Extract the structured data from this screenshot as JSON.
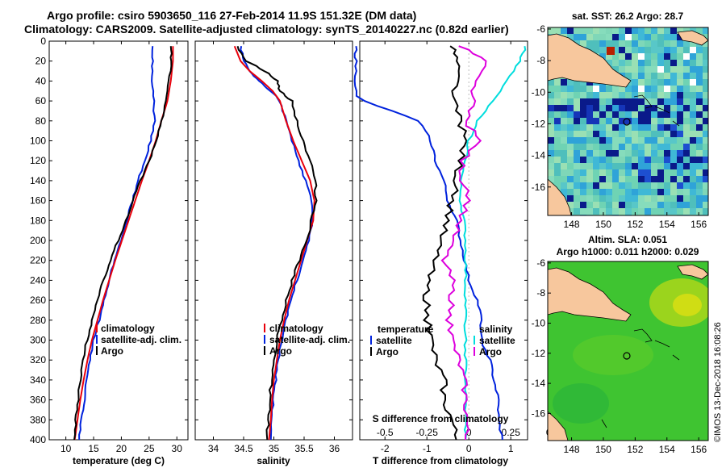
{
  "header": {
    "title_line1": "Argo profile: csiro 5903650_116 27-Feb-2014 11.9S 151.32E (DM data)",
    "title_line2": "Climatology: CARS2009. Satellite-adjusted climatology: synTS_20140227.nc (0.82d earlier)"
  },
  "depth_ticks": [
    0,
    20,
    40,
    60,
    80,
    100,
    120,
    140,
    160,
    180,
    200,
    220,
    240,
    260,
    280,
    300,
    320,
    340,
    360,
    380,
    400
  ],
  "colors": {
    "climatology": "#e8000b",
    "satellite": "#0022dd",
    "argo": "#000000",
    "sat_s": "#00dddd",
    "argo_s": "#dd00dd"
  },
  "chart_data": [
    {
      "type": "line",
      "xlabel": "temperature (deg C)",
      "xlim": [
        7,
        32
      ],
      "xticks": [
        10,
        15,
        20,
        25,
        30
      ],
      "ylim": [
        0,
        400
      ],
      "legend": [
        "climatology",
        "satellite-adj. clim.",
        "Argo"
      ],
      "series": [
        {
          "name": "climatology",
          "depth": [
            5,
            20,
            40,
            60,
            80,
            100,
            120,
            140,
            160,
            180,
            200,
            220,
            240,
            260,
            280,
            300,
            320,
            340,
            360,
            380,
            400
          ],
          "values": [
            29.3,
            29.3,
            28.9,
            28.3,
            27.2,
            26.2,
            25.0,
            23.7,
            22.5,
            21.3,
            20.1,
            18.9,
            17.8,
            16.7,
            15.7,
            14.7,
            13.9,
            13.2,
            12.6,
            12.1,
            11.6
          ]
        },
        {
          "name": "satellite-adj. clim.",
          "depth": [
            5,
            20,
            40,
            60,
            80,
            100,
            120,
            140,
            160,
            180,
            200,
            220,
            240,
            260,
            280,
            300,
            320,
            340,
            360,
            380,
            400
          ],
          "values": [
            25.5,
            25.6,
            25.5,
            25.8,
            26.0,
            25.3,
            24.2,
            23.0,
            22.0,
            21.0,
            19.9,
            18.8,
            17.8,
            16.9,
            16.0,
            15.0,
            14.4,
            13.8,
            13.3,
            12.8,
            12.4
          ]
        },
        {
          "name": "Argo",
          "depth": [
            5,
            20,
            40,
            60,
            80,
            100,
            120,
            140,
            160,
            180,
            200,
            220,
            240,
            260,
            280,
            300,
            320,
            340,
            360,
            380,
            400
          ],
          "values": [
            28.9,
            29.0,
            28.6,
            28.1,
            27.3,
            26.3,
            25.0,
            23.5,
            22.1,
            20.8,
            19.4,
            18.1,
            16.8,
            15.7,
            14.7,
            13.8,
            13.1,
            12.6,
            12.2,
            11.8,
            11.5
          ]
        }
      ]
    },
    {
      "type": "line",
      "xlabel": "salinity",
      "xlim": [
        33.7,
        36.3
      ],
      "xticks": [
        34,
        34.5,
        35,
        35.5,
        36
      ],
      "ylim": [
        0,
        400
      ],
      "legend": [
        "climatology",
        "satellite-adj. clim.",
        "Argo"
      ],
      "series": [
        {
          "name": "climatology",
          "depth": [
            5,
            20,
            30,
            40,
            50,
            60,
            80,
            100,
            120,
            140,
            160,
            180,
            200,
            220,
            240,
            260,
            280,
            300,
            320,
            340,
            360,
            380,
            400
          ],
          "values": [
            34.35,
            34.45,
            34.6,
            34.8,
            34.98,
            35.1,
            35.2,
            35.32,
            35.46,
            35.6,
            35.67,
            35.65,
            35.55,
            35.45,
            35.35,
            35.25,
            35.17,
            35.1,
            35.05,
            35.0,
            34.97,
            34.95,
            34.92
          ]
        },
        {
          "name": "satellite-adj. clim.",
          "depth": [
            5,
            20,
            30,
            40,
            50,
            60,
            80,
            100,
            120,
            140,
            160,
            180,
            200,
            220,
            240,
            260,
            280,
            300,
            320,
            340,
            360,
            380,
            400
          ],
          "values": [
            34.45,
            34.5,
            34.6,
            34.75,
            34.95,
            35.1,
            35.2,
            35.3,
            35.4,
            35.52,
            35.62,
            35.64,
            35.58,
            35.48,
            35.38,
            35.28,
            35.2,
            35.13,
            35.07,
            35.03,
            34.99,
            34.97,
            34.95
          ]
        },
        {
          "name": "Argo",
          "depth": [
            5,
            20,
            30,
            40,
            50,
            60,
            80,
            100,
            120,
            140,
            160,
            180,
            200,
            220,
            240,
            260,
            280,
            300,
            320,
            340,
            360,
            380,
            400
          ],
          "values": [
            34.4,
            34.55,
            34.85,
            35.05,
            35.1,
            35.3,
            35.38,
            35.48,
            35.6,
            35.68,
            35.7,
            35.62,
            35.55,
            35.42,
            35.3,
            35.2,
            35.12,
            35.05,
            35.0,
            34.96,
            34.93,
            34.91,
            34.89
          ]
        }
      ]
    },
    {
      "type": "line",
      "xlabel": "T difference from climatology",
      "xlabel_top": "S difference from climatology",
      "xlim": [
        -2.6,
        1.4
      ],
      "xticks": [
        -2,
        -1,
        0,
        1
      ],
      "xticks_top": [
        -0.5,
        -0.25,
        0,
        0.25,
        0.5
      ],
      "xlim_top": [
        -0.65,
        0.35
      ],
      "ylim": [
        0,
        400
      ],
      "legend_left_title": "temperature",
      "legend_right_title": "salinity",
      "legend": [
        "satellite",
        "Argo"
      ],
      "series": [
        {
          "name": "T satellite",
          "axis": "T",
          "depth": [
            5,
            20,
            40,
            60,
            80,
            100,
            120,
            140,
            160,
            180,
            200,
            220,
            240,
            260,
            280,
            300,
            320,
            340,
            360,
            380,
            400
          ],
          "values": [
            -3.8,
            -3.7,
            -3.4,
            -2.5,
            -1.2,
            -0.9,
            -0.8,
            -0.6,
            -0.5,
            -0.3,
            -0.2,
            -0.1,
            0.0,
            0.2,
            0.3,
            0.3,
            0.5,
            0.6,
            0.7,
            0.7,
            0.8
          ]
        },
        {
          "name": "T Argo",
          "axis": "T",
          "depth": [
            5,
            20,
            40,
            60,
            80,
            100,
            120,
            140,
            160,
            180,
            200,
            220,
            240,
            260,
            280,
            300,
            320,
            340,
            360,
            380,
            400
          ],
          "values": [
            -0.4,
            -0.3,
            -0.3,
            -0.4,
            -0.2,
            -0.1,
            -0.2,
            -0.3,
            -0.4,
            -0.5,
            -0.7,
            -0.8,
            -1.0,
            -1.0,
            -1.0,
            -0.9,
            -0.8,
            -0.6,
            -0.6,
            -0.4,
            -0.3
          ]
        },
        {
          "name": "S satellite",
          "axis": "S",
          "depth": [
            5,
            20,
            40,
            60,
            80,
            100,
            120,
            140,
            160,
            180,
            200,
            220,
            240,
            260,
            280,
            300,
            320,
            340,
            360,
            380,
            400
          ],
          "values": [
            0.35,
            0.3,
            0.23,
            0.14,
            0.05,
            0.0,
            -0.02,
            -0.05,
            -0.05,
            -0.03,
            -0.02,
            -0.02,
            -0.02,
            -0.02,
            -0.02,
            -0.02,
            -0.02,
            -0.02,
            -0.02,
            -0.02,
            -0.02
          ]
        },
        {
          "name": "S Argo",
          "axis": "S",
          "depth": [
            5,
            20,
            40,
            60,
            80,
            100,
            120,
            140,
            160,
            180,
            200,
            220,
            240,
            260,
            280,
            300,
            320,
            340,
            360,
            380,
            400
          ],
          "values": [
            -0.05,
            0.1,
            0.03,
            0.02,
            -0.02,
            0.06,
            -0.04,
            -0.04,
            0.0,
            -0.05,
            -0.1,
            -0.15,
            -0.1,
            -0.1,
            -0.12,
            -0.1,
            -0.06,
            -0.03,
            -0.02,
            -0.01,
            -0.02
          ]
        }
      ]
    }
  ],
  "maps": [
    {
      "title": "sat. SST: 26.2 Argo: 28.7",
      "lon_ticks": [
        148,
        150,
        152,
        154,
        156
      ],
      "lat_ticks": [
        -6,
        -8,
        -10,
        -12,
        -14,
        -16
      ]
    },
    {
      "title_line1": "Altim. SLA: 0.051",
      "title_line2": "Argo h1000: 0.011 h2000: 0.029",
      "lon_ticks": [
        148,
        150,
        152,
        154,
        156
      ],
      "lat_ticks": [
        -6,
        -8,
        -10,
        -12,
        -14,
        -16
      ]
    }
  ],
  "footer": {
    "stamp": "©IMOS 13-Dec-2018 16:08:26"
  }
}
